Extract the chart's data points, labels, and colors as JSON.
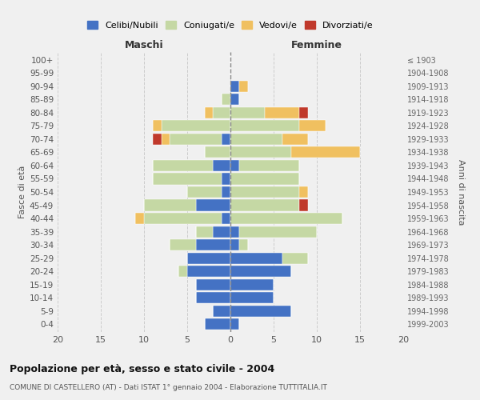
{
  "age_groups": [
    "0-4",
    "5-9",
    "10-14",
    "15-19",
    "20-24",
    "25-29",
    "30-34",
    "35-39",
    "40-44",
    "45-49",
    "50-54",
    "55-59",
    "60-64",
    "65-69",
    "70-74",
    "75-79",
    "80-84",
    "85-89",
    "90-94",
    "95-99",
    "100+"
  ],
  "birth_years": [
    "1999-2003",
    "1994-1998",
    "1989-1993",
    "1984-1988",
    "1979-1983",
    "1974-1978",
    "1969-1973",
    "1964-1968",
    "1959-1963",
    "1954-1958",
    "1949-1953",
    "1944-1948",
    "1939-1943",
    "1934-1938",
    "1929-1933",
    "1924-1928",
    "1919-1923",
    "1914-1918",
    "1909-1913",
    "1904-1908",
    "≤ 1903"
  ],
  "colors": {
    "celibi": "#4472c4",
    "coniugati": "#c5d8a4",
    "vedovi": "#f0c060",
    "divorziati": "#c0392b"
  },
  "maschi": {
    "celibi": [
      3,
      2,
      4,
      4,
      5,
      5,
      4,
      2,
      1,
      4,
      1,
      1,
      2,
      0,
      1,
      0,
      0,
      0,
      0,
      0,
      0
    ],
    "coniugati": [
      0,
      0,
      0,
      0,
      1,
      0,
      3,
      2,
      9,
      6,
      4,
      8,
      7,
      3,
      6,
      8,
      2,
      1,
      0,
      0,
      0
    ],
    "vedovi": [
      0,
      0,
      0,
      0,
      0,
      0,
      0,
      0,
      1,
      0,
      0,
      0,
      0,
      0,
      1,
      1,
      1,
      0,
      0,
      0,
      0
    ],
    "divorziati": [
      0,
      0,
      0,
      0,
      0,
      0,
      0,
      0,
      0,
      0,
      0,
      0,
      0,
      0,
      1,
      0,
      0,
      0,
      0,
      0,
      0
    ]
  },
  "femmine": {
    "celibi": [
      1,
      7,
      5,
      5,
      7,
      6,
      1,
      1,
      0,
      0,
      0,
      0,
      1,
      0,
      0,
      0,
      0,
      1,
      1,
      0,
      0
    ],
    "coniugati": [
      0,
      0,
      0,
      0,
      0,
      3,
      1,
      9,
      13,
      8,
      8,
      8,
      7,
      7,
      6,
      8,
      4,
      0,
      0,
      0,
      0
    ],
    "vedovi": [
      0,
      0,
      0,
      0,
      0,
      0,
      0,
      0,
      0,
      0,
      1,
      0,
      0,
      8,
      3,
      3,
      4,
      0,
      1,
      0,
      0
    ],
    "divorziati": [
      0,
      0,
      0,
      0,
      0,
      0,
      0,
      0,
      0,
      1,
      0,
      0,
      0,
      0,
      0,
      0,
      1,
      0,
      0,
      0,
      0
    ]
  },
  "xlim": 20,
  "title": "Popolazione per età, sesso e stato civile - 2004",
  "subtitle": "COMUNE DI CASTELLERO (AT) - Dati ISTAT 1° gennaio 2004 - Elaborazione TUTTITALIA.IT",
  "ylabel_left": "Fasce di età",
  "ylabel_right": "Anni di nascita",
  "xlabel_left": "Maschi",
  "xlabel_right": "Femmine",
  "legend_labels": [
    "Celibi/Nubili",
    "Coniugati/e",
    "Vedovi/e",
    "Divorziati/e"
  ],
  "bg_color": "#f0f0f0",
  "bar_height": 0.85
}
